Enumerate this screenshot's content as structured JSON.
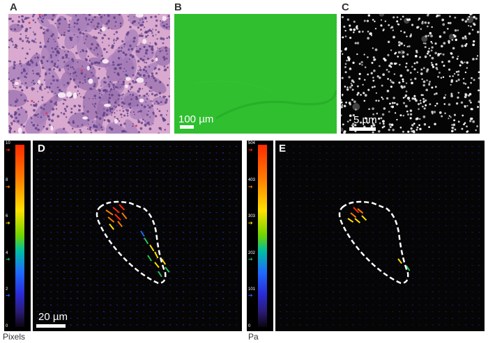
{
  "panels": {
    "a": {
      "letter": "A"
    },
    "b": {
      "letter": "B",
      "scale": "100 µm",
      "color": "#2ebf2e"
    },
    "c": {
      "letter": "C",
      "scale": "5 µm"
    },
    "d": {
      "letter": "D",
      "scale": "20 µm",
      "unit": "Pixels",
      "ticks": [
        "10",
        "8",
        "6",
        "4",
        "2",
        "0"
      ]
    },
    "e": {
      "letter": "E",
      "unit": "Pa",
      "ticks": [
        "504",
        "403",
        "303",
        "202",
        "101",
        "0"
      ]
    }
  },
  "arrow_colors": [
    "#ff2a00",
    "#ff7a00",
    "#ffe000",
    "#28c060",
    "#1e6bff"
  ]
}
